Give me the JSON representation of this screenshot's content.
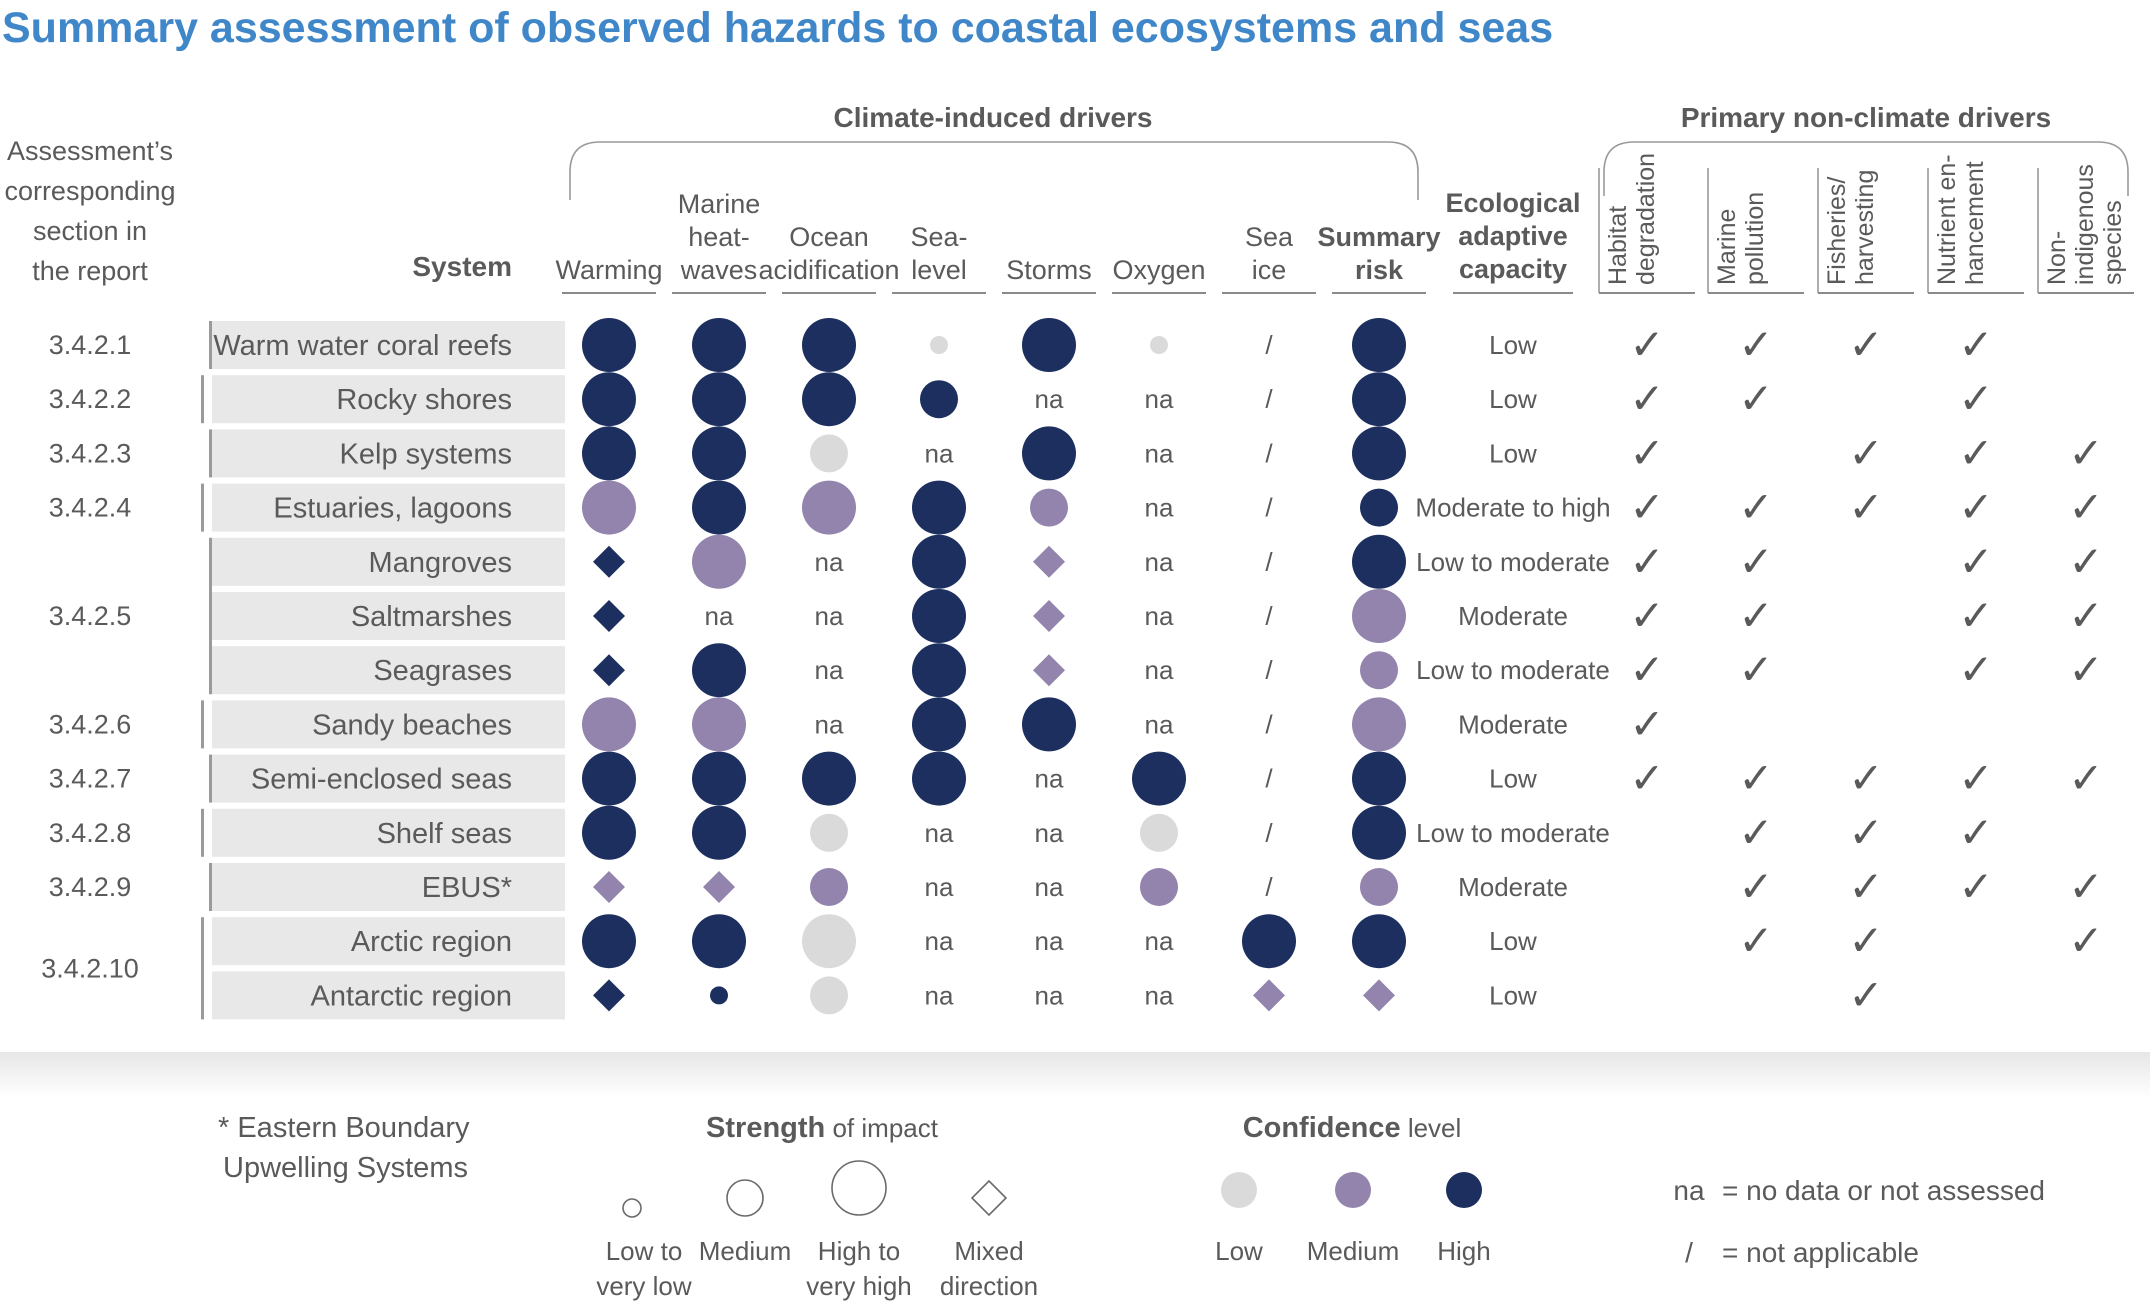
{
  "title": "Summary assessment of observed hazards to coastal ecosystems and seas",
  "group_labels": {
    "climate": "Climate-induced drivers",
    "non_climate": "Primary non-climate drivers"
  },
  "section_header": [
    "Assessment’s",
    "corresponding",
    "section in",
    "the report"
  ],
  "system_header": "System",
  "climate_columns": [
    {
      "lines": [
        "Warming"
      ]
    },
    {
      "lines": [
        "Marine",
        "heat-",
        "waves"
      ]
    },
    {
      "lines": [
        "Ocean",
        "acidification"
      ]
    },
    {
      "lines": [
        "Sea-",
        "level"
      ]
    },
    {
      "lines": [
        "Storms"
      ]
    },
    {
      "lines": [
        "Oxygen"
      ]
    },
    {
      "lines": [
        "Sea",
        "ice"
      ]
    }
  ],
  "summary_header": [
    "Summary",
    "risk"
  ],
  "capacity_header": [
    "Ecological",
    "adaptive",
    "capacity"
  ],
  "nonclimate_columns": [
    {
      "lines": [
        "Habitat",
        "degradation"
      ]
    },
    {
      "lines": [
        "Marine",
        "pollution"
      ]
    },
    {
      "lines": [
        "Fisheries/",
        "harvesting"
      ]
    },
    {
      "lines": [
        "Nutrient en-",
        "hancement"
      ]
    },
    {
      "lines": [
        "Non-",
        "indigenous",
        "species"
      ]
    }
  ],
  "section_groups": [
    {
      "label": "3.4.2.1",
      "rows": [
        0,
        0
      ]
    },
    {
      "label": "3.4.2.2",
      "rows": [
        1,
        1
      ]
    },
    {
      "label": "3.4.2.3",
      "rows": [
        2,
        2
      ]
    },
    {
      "label": "3.4.2.4",
      "rows": [
        3,
        3
      ]
    },
    {
      "label": "3.4.2.5",
      "rows": [
        4,
        6
      ]
    },
    {
      "label": "3.4.2.6",
      "rows": [
        7,
        7
      ]
    },
    {
      "label": "3.4.2.7",
      "rows": [
        8,
        8
      ]
    },
    {
      "label": "3.4.2.8",
      "rows": [
        9,
        9
      ]
    },
    {
      "label": "3.4.2.9",
      "rows": [
        10,
        10
      ]
    },
    {
      "label": "3.4.2.10",
      "rows": [
        11,
        12
      ]
    }
  ],
  "rows": [
    {
      "system": "Warm water coral reefs",
      "cells": [
        "XH",
        "XH",
        "XH",
        "SL",
        "XH",
        "SL",
        "/"
      ],
      "summary": "XH",
      "capacity": "Low",
      "checks": [
        1,
        1,
        1,
        1,
        0
      ]
    },
    {
      "system": "Rocky shores",
      "cells": [
        "XH",
        "XH",
        "XH",
        "MH",
        "na",
        "na",
        "/"
      ],
      "summary": "XH",
      "capacity": "Low",
      "checks": [
        1,
        1,
        0,
        1,
        0
      ]
    },
    {
      "system": "Kelp systems",
      "cells": [
        "XH",
        "XH",
        "ML",
        "na",
        "XH",
        "na",
        "/"
      ],
      "summary": "XH",
      "capacity": "Low",
      "checks": [
        1,
        0,
        1,
        1,
        1
      ]
    },
    {
      "system": "Estuaries, lagoons",
      "cells": [
        "XM",
        "XH",
        "XM",
        "XH",
        "MM",
        "na",
        "/"
      ],
      "summary": "MH",
      "capacity": "Moderate to high",
      "checks": [
        1,
        1,
        1,
        1,
        1
      ]
    },
    {
      "system": "Mangroves",
      "cells": [
        "DH",
        "XM",
        "na",
        "XH",
        "DM",
        "na",
        "/"
      ],
      "summary": "XH",
      "capacity": "Low to moderate",
      "checks": [
        1,
        1,
        0,
        1,
        1
      ]
    },
    {
      "system": "Saltmarshes",
      "cells": [
        "DH",
        "na",
        "na",
        "XH",
        "DM",
        "na",
        "/"
      ],
      "summary": "XM",
      "capacity": "Moderate",
      "checks": [
        1,
        1,
        0,
        1,
        1
      ]
    },
    {
      "system": "Seagrases",
      "cells": [
        "DH",
        "XH",
        "na",
        "XH",
        "DM",
        "na",
        "/"
      ],
      "summary": "MM",
      "capacity": "Low to moderate",
      "checks": [
        1,
        1,
        0,
        1,
        1
      ]
    },
    {
      "system": "Sandy beaches",
      "cells": [
        "XM",
        "XM",
        "na",
        "XH",
        "XH",
        "na",
        "/"
      ],
      "summary": "XM",
      "capacity": "Moderate",
      "checks": [
        1,
        0,
        0,
        0,
        0
      ]
    },
    {
      "system": "Semi-enclosed seas",
      "cells": [
        "XH",
        "XH",
        "XH",
        "XH",
        "na",
        "XH",
        "/"
      ],
      "summary": "XH",
      "capacity": "Low",
      "checks": [
        1,
        1,
        1,
        1,
        1
      ]
    },
    {
      "system": "Shelf seas",
      "cells": [
        "XH",
        "XH",
        "ML",
        "na",
        "na",
        "ML",
        "/"
      ],
      "summary": "XH",
      "capacity": "Low to moderate",
      "checks": [
        0,
        1,
        1,
        1,
        0
      ]
    },
    {
      "system": "EBUS*",
      "cells": [
        "DM",
        "DM",
        "MM",
        "na",
        "na",
        "MM",
        "/"
      ],
      "summary": "MM",
      "capacity": "Moderate",
      "checks": [
        0,
        1,
        1,
        1,
        1
      ]
    },
    {
      "system": "Arctic region",
      "cells": [
        "XH",
        "XH",
        "XL",
        "na",
        "na",
        "na",
        "XH"
      ],
      "summary": "XH",
      "capacity": "Low",
      "checks": [
        0,
        1,
        1,
        0,
        1
      ]
    },
    {
      "system": "Antarctic region",
      "cells": [
        "DH",
        "SH",
        "ML",
        "na",
        "na",
        "na",
        "DM"
      ],
      "summary": "DM",
      "capacity": "Low",
      "checks": [
        0,
        0,
        1,
        0,
        0
      ]
    }
  ],
  "check_glyph": "✓",
  "legend": {
    "footnote": [
      "* Eastern Boundary",
      "Upwelling Systems"
    ],
    "strength_title_bold": "Strength",
    "strength_title_rest": " of impact",
    "strength_items": [
      {
        "lines": [
          "Low to",
          "very low"
        ]
      },
      {
        "lines": [
          "Medium"
        ]
      },
      {
        "lines": [
          "High to",
          "very high"
        ]
      },
      {
        "lines": [
          "Mixed",
          "direction"
        ]
      }
    ],
    "confidence_title_bold": "Confidence",
    "confidence_title_rest": " level",
    "confidence_items": [
      {
        "label": "Low"
      },
      {
        "label": "Medium"
      },
      {
        "label": "High"
      }
    ],
    "na_key": "na",
    "na_text": "= no data or not assessed",
    "slash_key": "/",
    "slash_text": "= not applicable"
  },
  "colors": {
    "high": "#1c2f5e",
    "medium": "#9384ae",
    "low": "#dadada",
    "title": "#3f87c8",
    "row_band": "#e8e8e8",
    "text": "#5a5a5a"
  }
}
